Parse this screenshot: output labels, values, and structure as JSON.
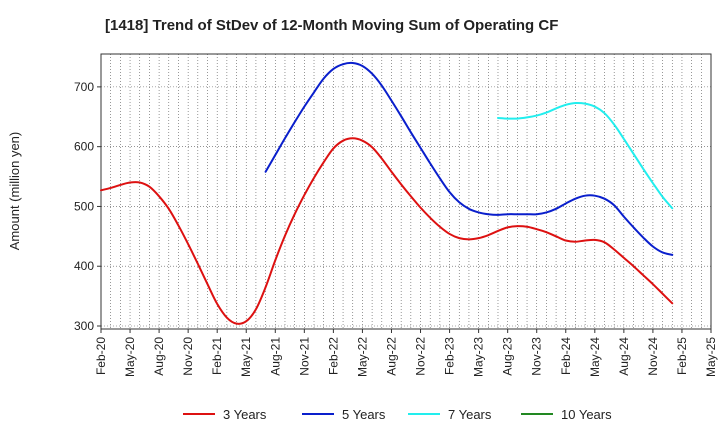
{
  "chart_data": {
    "type": "line",
    "title": "[1418]  Trend of StDev of 12-Month Moving Sum of Operating CF",
    "xlabel": "",
    "ylabel": "Amount (million yen)",
    "ylim": [
      295,
      755
    ],
    "yticks": [
      300,
      400,
      500,
      600,
      700
    ],
    "grid": true,
    "legend_position": "bottom",
    "xticks": [
      "Feb-20",
      "May-20",
      "Aug-20",
      "Nov-20",
      "Feb-21",
      "May-21",
      "Aug-21",
      "Nov-21",
      "Feb-22",
      "May-22",
      "Aug-22",
      "Nov-22",
      "Feb-23",
      "May-23",
      "Aug-23",
      "Nov-23",
      "Feb-24",
      "May-24",
      "Aug-24",
      "Nov-24",
      "Feb-25",
      "May-25"
    ],
    "x_range": [
      0,
      63
    ],
    "series": [
      {
        "name": "3 Years",
        "color": "#dd1111",
        "start_index": 0,
        "values": [
          527,
          531,
          536,
          540,
          540,
          533,
          517,
          496,
          468,
          437,
          404,
          370,
          337,
          314,
          304,
          308,
          328,
          365,
          410,
          451,
          487,
          519,
          548,
          574,
          597,
          610,
          614,
          610,
          599,
          580,
          558,
          537,
          517,
          498,
          481,
          466,
          454,
          447,
          445,
          447,
          452,
          459,
          465,
          467,
          466,
          462,
          457,
          450,
          443,
          441,
          443,
          444,
          440,
          428,
          414,
          400,
          385,
          370,
          354,
          338
        ]
      },
      {
        "name": "5 Years",
        "color": "#0a1fcc",
        "start_index": 17,
        "values": [
          558,
          586,
          614,
          641,
          667,
          691,
          714,
          730,
          738,
          740,
          735,
          722,
          702,
          677,
          651,
          624,
          598,
          572,
          547,
          524,
          507,
          496,
          490,
          487,
          486,
          487,
          487,
          487,
          487,
          490,
          496,
          505,
          513,
          518,
          518,
          513,
          502,
          483,
          465,
          448,
          433,
          423,
          419
        ]
      },
      {
        "name": "7 Years",
        "color": "#22eeee",
        "start_index": 41,
        "values": [
          648,
          647,
          647,
          649,
          652,
          657,
          664,
          670,
          673,
          672,
          667,
          656,
          637,
          613,
          588,
          563,
          539,
          516,
          497
        ]
      },
      {
        "name": "10 Years",
        "color": "#228822",
        "start_index": 0,
        "values": []
      }
    ]
  }
}
